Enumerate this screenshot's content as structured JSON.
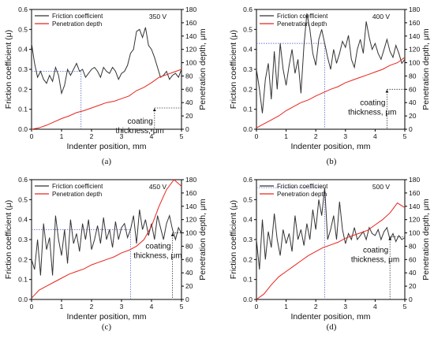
{
  "panels": [
    {
      "label": "(a)",
      "voltage": "350 V",
      "annotation_lines": [
        "coating",
        "thickness, μm"
      ],
      "coating_thickness_um": 32,
      "friction_threshold_position_mm": 1.65,
      "depth_threshold_position_mm": 4.1
    },
    {
      "label": "(b)",
      "voltage": "400 V",
      "annotation_lines": [
        "coating",
        "thickness, μm"
      ],
      "coating_thickness_um": 60,
      "friction_threshold_position_mm": 2.3,
      "depth_threshold_position_mm": 4.4
    },
    {
      "label": "(c)",
      "voltage": "450 V",
      "annotation_lines": [
        "coating",
        "thickness, μm"
      ],
      "coating_thickness_um": 100,
      "friction_threshold_position_mm": 3.3,
      "depth_threshold_position_mm": 4.7
    },
    {
      "label": "(d)",
      "voltage": "500 V",
      "annotation_lines": [
        "coating",
        "thickness, μm"
      ],
      "coating_thickness_um": 94,
      "friction_threshold_position_mm": 2.3,
      "depth_threshold_position_mm": 4.5
    }
  ],
  "chart_data": [
    {
      "type": "line",
      "panel": "(a)",
      "title": "350 V",
      "xlabel": "Indenter position, mm",
      "ylabel": "Friction coefficient (μ)",
      "y2label": "Penetration depth, μm",
      "xlim": [
        0,
        5
      ],
      "ylim": [
        0,
        0.6
      ],
      "y2lim": [
        0,
        180
      ],
      "xticks": [
        0,
        1,
        2,
        3,
        4,
        5
      ],
      "yticks": [
        0.0,
        0.1,
        0.2,
        0.3,
        0.4,
        0.5,
        0.6
      ],
      "y2ticks": [
        0,
        20,
        40,
        60,
        80,
        100,
        120,
        140,
        160,
        180
      ],
      "legend_position": "top-left",
      "series": [
        {
          "name": "Friction coefficient",
          "axis": "left",
          "color": "#333333",
          "x": [
            0,
            0.1,
            0.2,
            0.3,
            0.4,
            0.5,
            0.6,
            0.7,
            0.8,
            0.9,
            1.0,
            1.1,
            1.2,
            1.3,
            1.4,
            1.5,
            1.6,
            1.7,
            1.8,
            1.9,
            2.0,
            2.1,
            2.2,
            2.3,
            2.4,
            2.5,
            2.6,
            2.7,
            2.8,
            2.9,
            3.0,
            3.1,
            3.2,
            3.3,
            3.4,
            3.5,
            3.6,
            3.7,
            3.8,
            3.9,
            4.0,
            4.1,
            4.2,
            4.3,
            4.4,
            4.5,
            4.6,
            4.7,
            4.8,
            4.9,
            5.0
          ],
          "y": [
            0.43,
            0.33,
            0.26,
            0.29,
            0.25,
            0.23,
            0.27,
            0.24,
            0.31,
            0.27,
            0.18,
            0.22,
            0.3,
            0.27,
            0.3,
            0.33,
            0.29,
            0.3,
            0.26,
            0.28,
            0.3,
            0.31,
            0.29,
            0.26,
            0.31,
            0.29,
            0.28,
            0.31,
            0.29,
            0.25,
            0.28,
            0.29,
            0.32,
            0.38,
            0.4,
            0.49,
            0.5,
            0.46,
            0.51,
            0.42,
            0.4,
            0.36,
            0.31,
            0.26,
            0.27,
            0.29,
            0.25,
            0.27,
            0.28,
            0.26,
            0.3
          ]
        },
        {
          "name": "Penetration depth",
          "axis": "right",
          "color": "#e8241c",
          "x": [
            0,
            0.25,
            0.5,
            0.75,
            1.0,
            1.25,
            1.5,
            1.75,
            2.0,
            2.25,
            2.5,
            2.75,
            3.0,
            3.25,
            3.5,
            3.75,
            4.0,
            4.25,
            4.5,
            4.75,
            5.0
          ],
          "y": [
            0,
            2,
            6,
            11,
            16,
            20,
            25,
            28,
            32,
            36,
            40,
            42,
            46,
            50,
            58,
            63,
            70,
            78,
            82,
            86,
            90
          ]
        }
      ]
    },
    {
      "type": "line",
      "panel": "(b)",
      "title": "400 V",
      "xlabel": "Indenter position, mm",
      "ylabel": "Friction coefficient (μ)",
      "y2label": "Penetration depth, μm",
      "xlim": [
        0,
        5
      ],
      "ylim": [
        0,
        0.6
      ],
      "y2lim": [
        0,
        180
      ],
      "xticks": [
        0,
        1,
        2,
        3,
        4,
        5
      ],
      "yticks": [
        0.0,
        0.1,
        0.2,
        0.3,
        0.4,
        0.5,
        0.6
      ],
      "y2ticks": [
        0,
        20,
        40,
        60,
        80,
        100,
        120,
        140,
        160,
        180
      ],
      "legend_position": "top-left",
      "series": [
        {
          "name": "Friction coefficient",
          "axis": "left",
          "color": "#333333",
          "x": [
            0,
            0.1,
            0.2,
            0.3,
            0.4,
            0.5,
            0.6,
            0.7,
            0.8,
            0.9,
            1.0,
            1.1,
            1.2,
            1.3,
            1.4,
            1.5,
            1.6,
            1.7,
            1.8,
            1.9,
            2.0,
            2.1,
            2.2,
            2.3,
            2.4,
            2.5,
            2.6,
            2.7,
            2.8,
            2.9,
            3.0,
            3.1,
            3.2,
            3.3,
            3.4,
            3.5,
            3.6,
            3.7,
            3.8,
            3.9,
            4.0,
            4.1,
            4.2,
            4.3,
            4.4,
            4.5,
            4.6,
            4.7,
            4.8,
            4.9,
            5.0
          ],
          "y": [
            0.3,
            0.2,
            0.08,
            0.25,
            0.33,
            0.15,
            0.39,
            0.2,
            0.43,
            0.3,
            0.22,
            0.32,
            0.4,
            0.28,
            0.35,
            0.18,
            0.42,
            0.58,
            0.5,
            0.38,
            0.32,
            0.45,
            0.5,
            0.43,
            0.36,
            0.3,
            0.4,
            0.33,
            0.38,
            0.44,
            0.41,
            0.47,
            0.35,
            0.31,
            0.4,
            0.45,
            0.38,
            0.54,
            0.46,
            0.4,
            0.43,
            0.38,
            0.35,
            0.4,
            0.45,
            0.39,
            0.36,
            0.42,
            0.38,
            0.33,
            0.35
          ]
        },
        {
          "name": "Penetration depth",
          "axis": "right",
          "color": "#e8241c",
          "x": [
            0,
            0.25,
            0.5,
            0.75,
            1.0,
            1.25,
            1.5,
            1.75,
            2.0,
            2.25,
            2.5,
            2.75,
            3.0,
            3.25,
            3.5,
            3.75,
            4.0,
            4.25,
            4.5,
            4.75,
            5.0
          ],
          "y": [
            2,
            8,
            14,
            20,
            28,
            34,
            40,
            44,
            50,
            55,
            60,
            64,
            70,
            74,
            78,
            82,
            86,
            90,
            96,
            100,
            108
          ]
        }
      ]
    },
    {
      "type": "line",
      "panel": "(c)",
      "title": "450 V",
      "xlabel": "Indenter position, mm",
      "ylabel": "Friction coefficient (μ)",
      "y2label": "Penetration depth, μm",
      "xlim": [
        0,
        5
      ],
      "ylim": [
        0,
        0.6
      ],
      "y2lim": [
        0,
        180
      ],
      "xticks": [
        0,
        1,
        2,
        3,
        4,
        5
      ],
      "yticks": [
        0.0,
        0.1,
        0.2,
        0.3,
        0.4,
        0.5,
        0.6
      ],
      "y2ticks": [
        0,
        20,
        40,
        60,
        80,
        100,
        120,
        140,
        160,
        180
      ],
      "legend_position": "top-left",
      "series": [
        {
          "name": "Friction coefficient",
          "axis": "left",
          "color": "#333333",
          "x": [
            0,
            0.1,
            0.2,
            0.3,
            0.4,
            0.5,
            0.6,
            0.7,
            0.8,
            0.9,
            1.0,
            1.1,
            1.2,
            1.3,
            1.4,
            1.5,
            1.6,
            1.7,
            1.8,
            1.9,
            2.0,
            2.1,
            2.2,
            2.3,
            2.4,
            2.5,
            2.6,
            2.7,
            2.8,
            2.9,
            3.0,
            3.1,
            3.2,
            3.3,
            3.4,
            3.5,
            3.6,
            3.7,
            3.8,
            3.9,
            4.0,
            4.1,
            4.2,
            4.3,
            4.4,
            4.5,
            4.6,
            4.7,
            4.8,
            4.9,
            5.0
          ],
          "y": [
            0.2,
            0.15,
            0.3,
            0.12,
            0.38,
            0.25,
            0.31,
            0.12,
            0.42,
            0.3,
            0.22,
            0.35,
            0.18,
            0.4,
            0.28,
            0.33,
            0.24,
            0.38,
            0.3,
            0.4,
            0.25,
            0.3,
            0.37,
            0.28,
            0.41,
            0.3,
            0.35,
            0.26,
            0.39,
            0.3,
            0.36,
            0.38,
            0.31,
            0.35,
            0.42,
            0.28,
            0.45,
            0.35,
            0.4,
            0.32,
            0.38,
            0.3,
            0.42,
            0.36,
            0.3,
            0.38,
            0.42,
            0.35,
            0.3,
            0.36,
            0.33
          ]
        },
        {
          "name": "Penetration depth",
          "axis": "right",
          "color": "#e8241c",
          "x": [
            0,
            0.25,
            0.5,
            0.75,
            1.0,
            1.25,
            1.5,
            1.75,
            2.0,
            2.25,
            2.5,
            2.75,
            3.0,
            3.25,
            3.5,
            3.75,
            4.0,
            4.25,
            4.5,
            4.75,
            5.0
          ],
          "y": [
            2,
            14,
            20,
            26,
            32,
            38,
            42,
            46,
            52,
            56,
            60,
            64,
            70,
            74,
            80,
            90,
            110,
            140,
            165,
            180,
            170
          ]
        }
      ]
    },
    {
      "type": "line",
      "panel": "(d)",
      "title": "500 V",
      "xlabel": "Indenter position, mm",
      "ylabel": "Friction coefficient (μ)",
      "y2label": "Penetration depth, μm",
      "xlim": [
        0,
        5
      ],
      "ylim": [
        0,
        0.6
      ],
      "y2lim": [
        0,
        180
      ],
      "xticks": [
        0,
        1,
        2,
        3,
        4,
        5
      ],
      "yticks": [
        0.0,
        0.1,
        0.2,
        0.3,
        0.4,
        0.5,
        0.6
      ],
      "y2ticks": [
        0,
        20,
        40,
        60,
        80,
        100,
        120,
        140,
        160,
        180
      ],
      "legend_position": "top-left",
      "series": [
        {
          "name": "Friction coefficient",
          "axis": "left",
          "color": "#333333",
          "x": [
            0,
            0.1,
            0.2,
            0.3,
            0.4,
            0.5,
            0.6,
            0.7,
            0.8,
            0.9,
            1.0,
            1.1,
            1.2,
            1.3,
            1.4,
            1.5,
            1.6,
            1.7,
            1.8,
            1.9,
            2.0,
            2.1,
            2.2,
            2.3,
            2.4,
            2.5,
            2.6,
            2.7,
            2.8,
            2.9,
            3.0,
            3.1,
            3.2,
            3.3,
            3.4,
            3.5,
            3.6,
            3.7,
            3.8,
            3.9,
            4.0,
            4.1,
            4.2,
            4.3,
            4.4,
            4.5,
            4.6,
            4.7,
            4.8,
            4.9,
            5.0
          ],
          "y": [
            0.3,
            0.15,
            0.4,
            0.2,
            0.34,
            0.26,
            0.43,
            0.3,
            0.22,
            0.35,
            0.28,
            0.33,
            0.24,
            0.42,
            0.3,
            0.35,
            0.27,
            0.38,
            0.3,
            0.45,
            0.35,
            0.5,
            0.42,
            0.56,
            0.3,
            0.35,
            0.42,
            0.3,
            0.49,
            0.35,
            0.28,
            0.33,
            0.3,
            0.36,
            0.3,
            0.32,
            0.34,
            0.3,
            0.36,
            0.33,
            0.32,
            0.35,
            0.3,
            0.34,
            0.36,
            0.3,
            0.33,
            0.29,
            0.32,
            0.3,
            0.31
          ]
        },
        {
          "name": "Penetration depth",
          "axis": "right",
          "color": "#e8241c",
          "x": [
            0,
            0.25,
            0.5,
            0.75,
            1.0,
            1.25,
            1.5,
            1.75,
            2.0,
            2.25,
            2.5,
            2.75,
            3.0,
            3.25,
            3.5,
            3.75,
            4.0,
            4.25,
            4.5,
            4.75,
            5.0
          ],
          "y": [
            0,
            8,
            22,
            34,
            42,
            50,
            58,
            66,
            72,
            78,
            82,
            86,
            92,
            96,
            100,
            104,
            112,
            120,
            130,
            145,
            138
          ]
        }
      ]
    }
  ]
}
